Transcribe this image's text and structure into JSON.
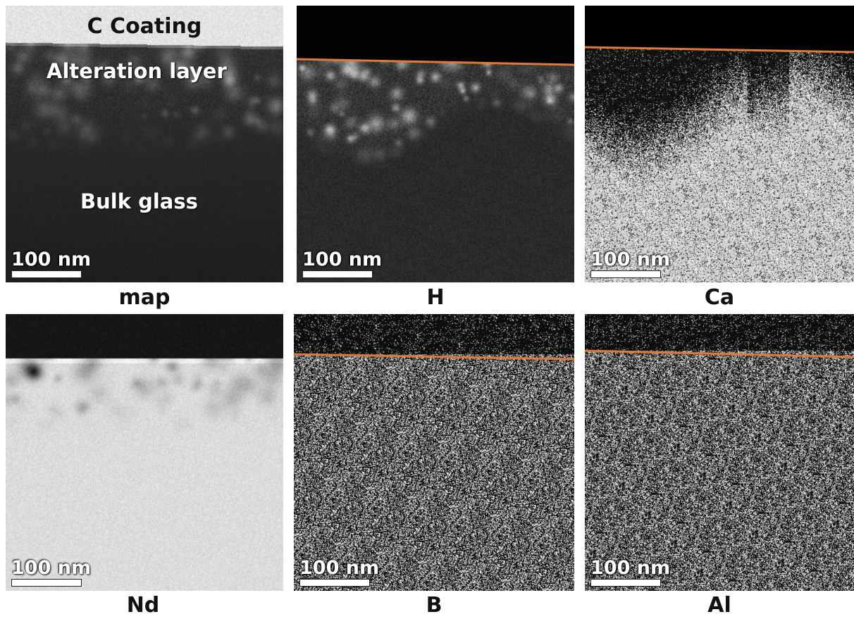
{
  "colors": {
    "interface_line": "#e0783a",
    "scale_bar": "#ffffff"
  },
  "scale_label": "100 nm",
  "map_labels": {
    "coating": "C Coating",
    "alteration": "Alteration layer",
    "bulk": "Bulk glass"
  },
  "panels": [
    {
      "id": "map",
      "caption": "map"
    },
    {
      "id": "h",
      "caption": "H"
    },
    {
      "id": "ca",
      "caption": "Ca"
    },
    {
      "id": "nd",
      "caption": "Nd"
    },
    {
      "id": "b",
      "caption": "B"
    },
    {
      "id": "al",
      "caption": "Al"
    }
  ]
}
